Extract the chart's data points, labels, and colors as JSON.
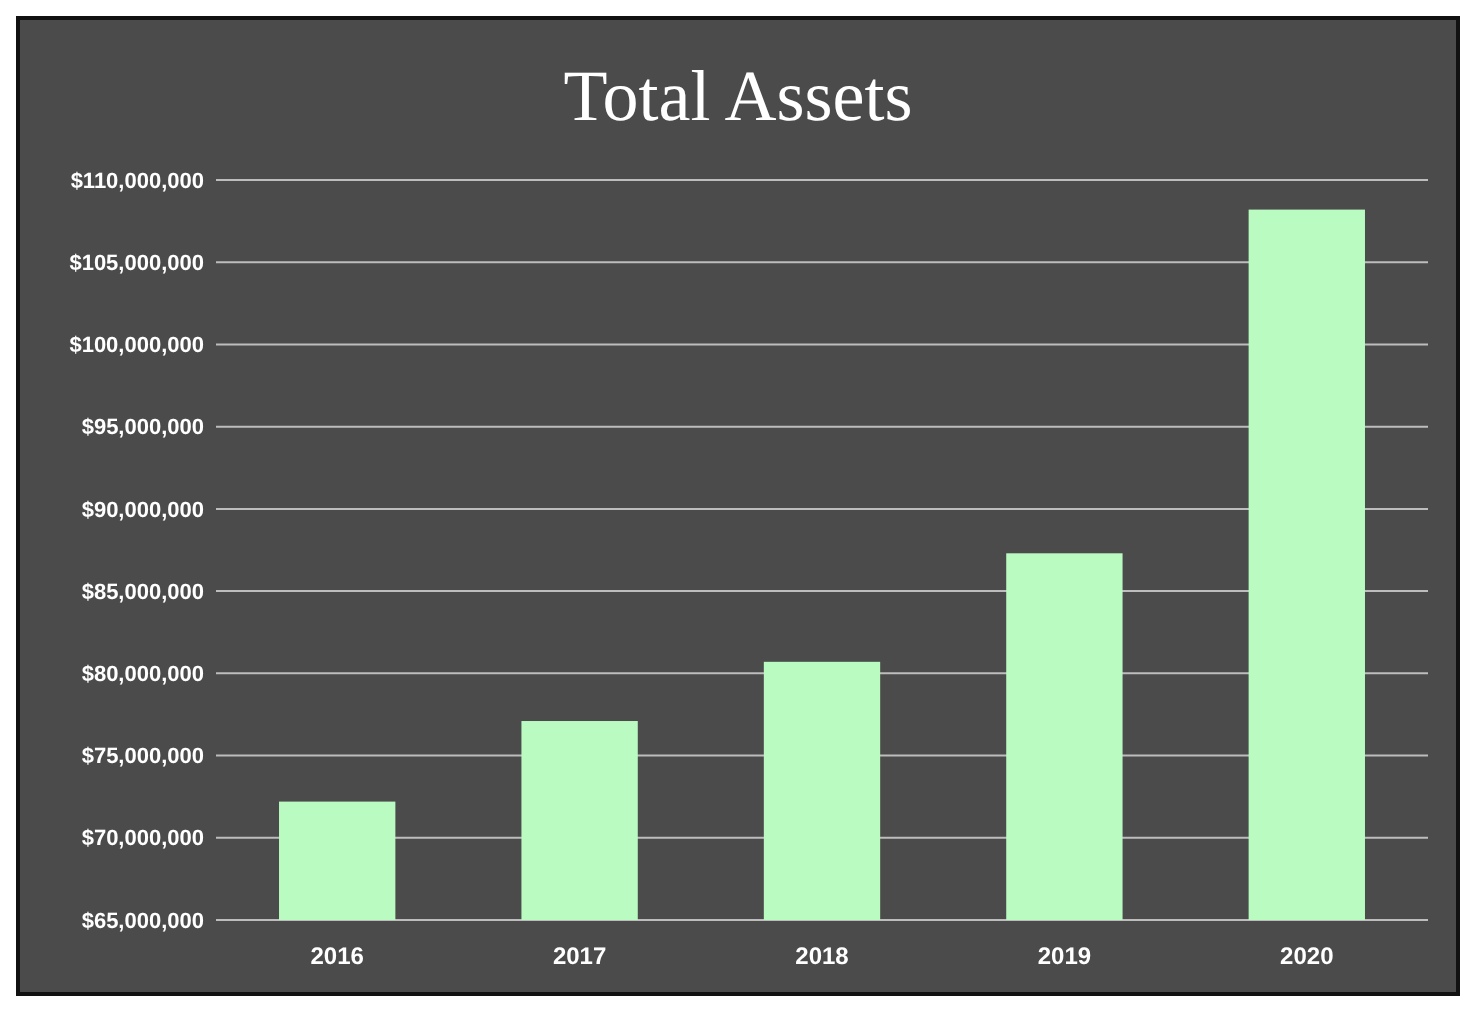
{
  "chart_data": {
    "type": "bar",
    "title": "Total Assets",
    "categories": [
      "2016",
      "2017",
      "2018",
      "2019",
      "2020"
    ],
    "values": [
      72200000,
      77100000,
      80700000,
      87300000,
      108200000
    ],
    "color": "#b9fbc0",
    "ylim": [
      65000000,
      110000000
    ],
    "yticks": [
      {
        "value": 65000000,
        "label": "$65,000,000"
      },
      {
        "value": 70000000,
        "label": "$70,000,000"
      },
      {
        "value": 75000000,
        "label": "$75,000,000"
      },
      {
        "value": 80000000,
        "label": "$80,000,000"
      },
      {
        "value": 85000000,
        "label": "$85,000,000"
      },
      {
        "value": 90000000,
        "label": "$90,000,000"
      },
      {
        "value": 95000000,
        "label": "$95,000,000"
      },
      {
        "value": 100000000,
        "label": "$100,000,000"
      },
      {
        "value": 105000000,
        "label": "$105,000,000"
      },
      {
        "value": 110000000,
        "label": "$110,000,000"
      }
    ],
    "grid": "y"
  }
}
